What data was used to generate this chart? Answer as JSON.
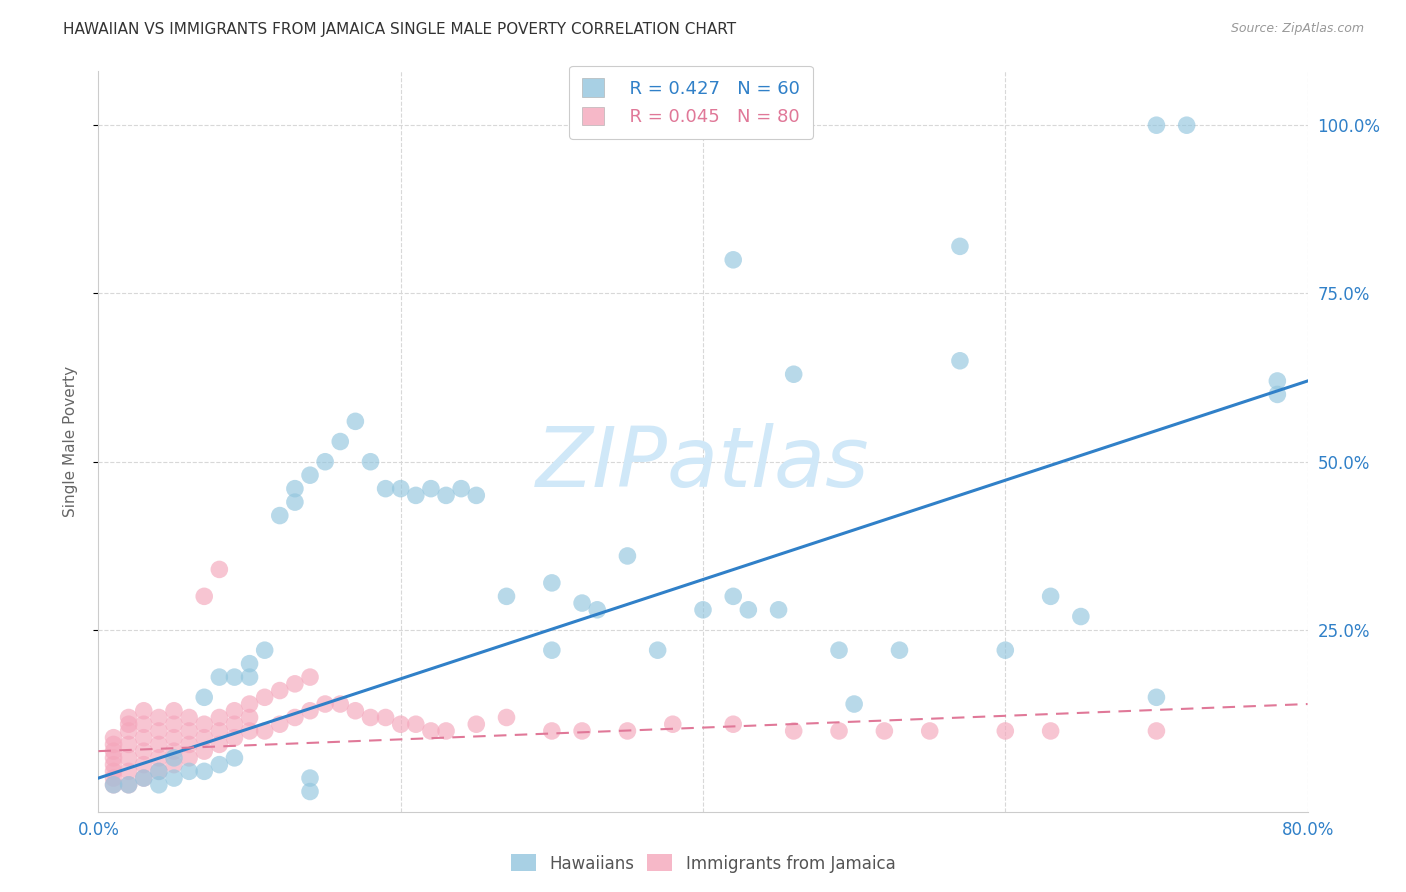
{
  "title": "HAWAIIAN VS IMMIGRANTS FROM JAMAICA SINGLE MALE POVERTY CORRELATION CHART",
  "source": "Source: ZipAtlas.com",
  "ylabel": "Single Male Poverty",
  "right_yticks": [
    "100.0%",
    "75.0%",
    "50.0%",
    "25.0%"
  ],
  "right_ytick_vals": [
    1.0,
    0.75,
    0.5,
    0.25
  ],
  "legend_hawaiians_R": "R = 0.427",
  "legend_hawaiians_N": "N = 60",
  "legend_jamaica_R": "R = 0.045",
  "legend_jamaica_N": "N = 80",
  "blue_color": "#92c5de",
  "pink_color": "#f4a6bb",
  "blue_line_color": "#3080c8",
  "pink_line_color": "#e07898",
  "right_tick_color": "#3080c8",
  "watermark_text": "ZIPatlas",
  "watermark_color": "#d0e8f8",
  "xlim": [
    0.0,
    0.8
  ],
  "ylim": [
    -0.02,
    1.08
  ],
  "blue_trendline_x0": 0.0,
  "blue_trendline_y0": 0.03,
  "blue_trendline_x1": 0.8,
  "blue_trendline_y1": 0.62,
  "pink_trendline_x0": 0.0,
  "pink_trendline_y0": 0.07,
  "pink_trendline_x1": 0.8,
  "pink_trendline_y1": 0.14,
  "grid_color": "#d8d8d8",
  "background_color": "#ffffff",
  "hawaiians_x": [
    0.01,
    0.02,
    0.03,
    0.04,
    0.04,
    0.05,
    0.05,
    0.06,
    0.07,
    0.07,
    0.08,
    0.08,
    0.09,
    0.09,
    0.1,
    0.1,
    0.11,
    0.12,
    0.13,
    0.13,
    0.14,
    0.15,
    0.16,
    0.17,
    0.18,
    0.19,
    0.2,
    0.21,
    0.22,
    0.23,
    0.24,
    0.25,
    0.27,
    0.3,
    0.32,
    0.33,
    0.35,
    0.37,
    0.4,
    0.42,
    0.43,
    0.45,
    0.49,
    0.5,
    0.53,
    0.57,
    0.6,
    0.63,
    0.65,
    0.7,
    0.72,
    0.78,
    0.14,
    0.14,
    0.3,
    0.42,
    0.46,
    0.57,
    0.7,
    0.78
  ],
  "hawaiians_y": [
    0.02,
    0.02,
    0.03,
    0.02,
    0.04,
    0.03,
    0.06,
    0.04,
    0.04,
    0.15,
    0.05,
    0.18,
    0.18,
    0.06,
    0.2,
    0.18,
    0.22,
    0.42,
    0.44,
    0.46,
    0.48,
    0.5,
    0.53,
    0.56,
    0.5,
    0.46,
    0.46,
    0.45,
    0.46,
    0.45,
    0.46,
    0.45,
    0.3,
    0.32,
    0.29,
    0.28,
    0.36,
    0.22,
    0.28,
    0.3,
    0.28,
    0.28,
    0.22,
    0.14,
    0.22,
    0.65,
    0.22,
    0.3,
    0.27,
    0.15,
    1.0,
    0.62,
    0.03,
    0.01,
    0.22,
    0.8,
    0.63,
    0.82,
    1.0,
    0.6
  ],
  "jamaica_x": [
    0.01,
    0.01,
    0.01,
    0.01,
    0.01,
    0.01,
    0.01,
    0.01,
    0.02,
    0.02,
    0.02,
    0.02,
    0.02,
    0.02,
    0.02,
    0.03,
    0.03,
    0.03,
    0.03,
    0.03,
    0.03,
    0.04,
    0.04,
    0.04,
    0.04,
    0.04,
    0.05,
    0.05,
    0.05,
    0.05,
    0.05,
    0.06,
    0.06,
    0.06,
    0.06,
    0.07,
    0.07,
    0.07,
    0.07,
    0.08,
    0.08,
    0.08,
    0.08,
    0.09,
    0.09,
    0.09,
    0.1,
    0.1,
    0.1,
    0.11,
    0.11,
    0.12,
    0.12,
    0.13,
    0.13,
    0.14,
    0.14,
    0.15,
    0.16,
    0.17,
    0.18,
    0.19,
    0.2,
    0.21,
    0.22,
    0.23,
    0.25,
    0.27,
    0.3,
    0.32,
    0.35,
    0.38,
    0.42,
    0.46,
    0.49,
    0.52,
    0.55,
    0.6,
    0.63,
    0.7
  ],
  "jamaica_y": [
    0.02,
    0.03,
    0.04,
    0.05,
    0.06,
    0.07,
    0.08,
    0.09,
    0.02,
    0.04,
    0.06,
    0.08,
    0.1,
    0.11,
    0.12,
    0.03,
    0.05,
    0.07,
    0.09,
    0.11,
    0.13,
    0.04,
    0.06,
    0.08,
    0.1,
    0.12,
    0.05,
    0.07,
    0.09,
    0.11,
    0.13,
    0.06,
    0.08,
    0.1,
    0.12,
    0.07,
    0.09,
    0.11,
    0.3,
    0.08,
    0.1,
    0.12,
    0.34,
    0.09,
    0.11,
    0.13,
    0.1,
    0.12,
    0.14,
    0.1,
    0.15,
    0.11,
    0.16,
    0.12,
    0.17,
    0.13,
    0.18,
    0.14,
    0.14,
    0.13,
    0.12,
    0.12,
    0.11,
    0.11,
    0.1,
    0.1,
    0.11,
    0.12,
    0.1,
    0.1,
    0.1,
    0.11,
    0.11,
    0.1,
    0.1,
    0.1,
    0.1,
    0.1,
    0.1,
    0.1
  ]
}
